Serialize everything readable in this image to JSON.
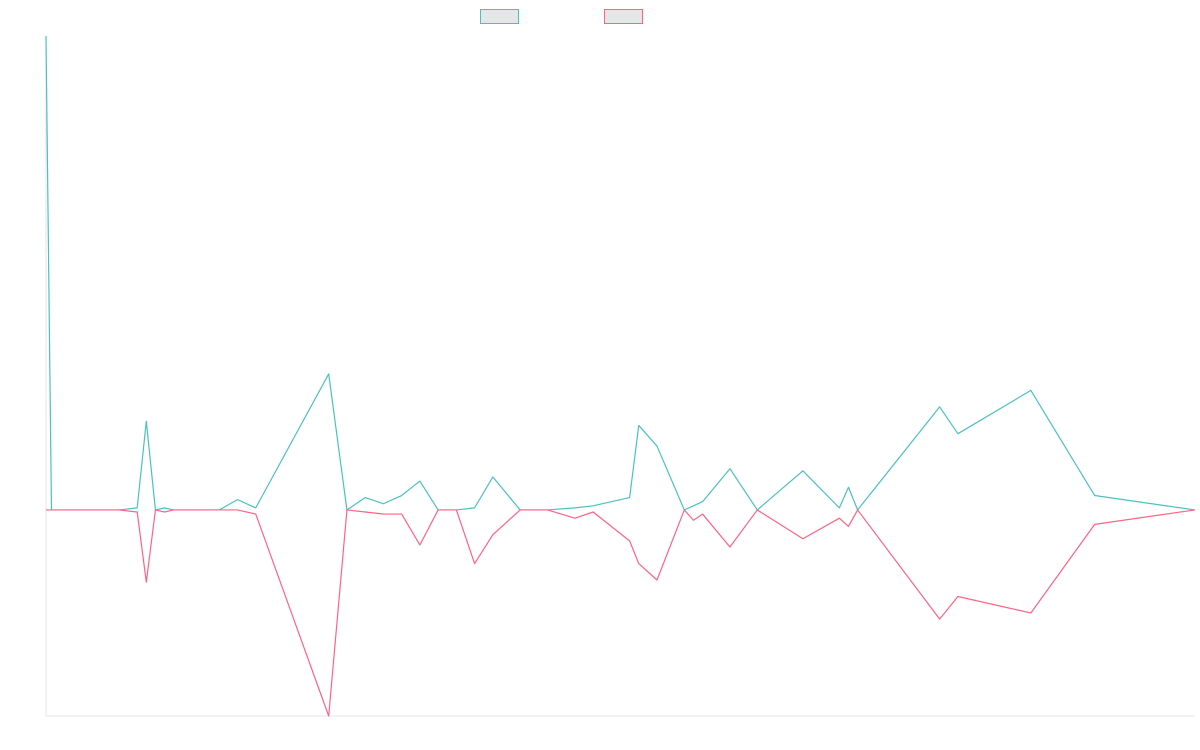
{
  "chart_data": {
    "type": "line",
    "title": "",
    "xlabel": "",
    "ylabel": "",
    "ylim": [
      -100,
      230
    ],
    "grid": false,
    "legend_placement": "top-center",
    "series": [
      {
        "name": "",
        "color": "#4bc0c0",
        "points": [
          [
            0,
            230
          ],
          [
            0.3,
            0
          ],
          [
            4,
            0
          ],
          [
            5,
            1
          ],
          [
            5.5,
            43
          ],
          [
            6,
            0
          ],
          [
            6.5,
            1
          ],
          [
            7,
            0
          ],
          [
            8.5,
            0
          ],
          [
            9,
            0
          ],
          [
            9.5,
            0
          ],
          [
            10.5,
            5
          ],
          [
            11.5,
            1
          ],
          [
            15.5,
            66
          ],
          [
            16.5,
            0
          ],
          [
            17.5,
            6
          ],
          [
            18.5,
            3
          ],
          [
            19.5,
            7
          ],
          [
            20.5,
            14
          ],
          [
            21.5,
            0
          ],
          [
            22.5,
            0
          ],
          [
            23.5,
            1
          ],
          [
            24.5,
            16
          ],
          [
            26,
            0
          ],
          [
            27.5,
            0
          ],
          [
            29,
            1
          ],
          [
            30,
            2
          ],
          [
            32,
            6
          ],
          [
            32.5,
            41
          ],
          [
            33.5,
            31
          ],
          [
            35,
            0
          ],
          [
            35.5,
            2
          ],
          [
            36,
            4
          ],
          [
            37.5,
            20
          ],
          [
            39,
            0
          ],
          [
            41.5,
            19
          ],
          [
            43.5,
            1
          ],
          [
            44,
            11
          ],
          [
            44.5,
            0
          ],
          [
            49,
            50
          ],
          [
            50,
            37
          ],
          [
            54,
            58
          ],
          [
            57.5,
            7
          ]
        ]
      },
      {
        "name": "",
        "color": "#ff6384",
        "points": [
          [
            0,
            0
          ],
          [
            0.3,
            0
          ],
          [
            4,
            0
          ],
          [
            5,
            -1
          ],
          [
            5.5,
            -35
          ],
          [
            6,
            0
          ],
          [
            6.5,
            -1
          ],
          [
            7,
            0
          ],
          [
            8.5,
            0
          ],
          [
            9,
            0
          ],
          [
            9.5,
            0
          ],
          [
            10.5,
            0
          ],
          [
            11.5,
            -2
          ],
          [
            15.5,
            -100
          ],
          [
            16.5,
            0
          ],
          [
            17.5,
            -1
          ],
          [
            18.5,
            -2
          ],
          [
            19.5,
            -2
          ],
          [
            20.5,
            -17
          ],
          [
            21.5,
            0
          ],
          [
            22.5,
            0
          ],
          [
            23.5,
            -26
          ],
          [
            24.5,
            -12
          ],
          [
            26,
            0
          ],
          [
            27.5,
            0
          ],
          [
            29,
            -4
          ],
          [
            30,
            -1
          ],
          [
            32,
            -15
          ],
          [
            32.5,
            -26
          ],
          [
            33.5,
            -34
          ],
          [
            35,
            0
          ],
          [
            35.5,
            -5
          ],
          [
            36,
            -2
          ],
          [
            37.5,
            -18
          ],
          [
            39,
            0
          ],
          [
            41.5,
            -14
          ],
          [
            43.5,
            -4
          ],
          [
            44,
            -8
          ],
          [
            44.5,
            0
          ],
          [
            49,
            -53
          ],
          [
            50,
            -42
          ],
          [
            54,
            -50
          ],
          [
            57.5,
            -7
          ]
        ]
      }
    ]
  }
}
